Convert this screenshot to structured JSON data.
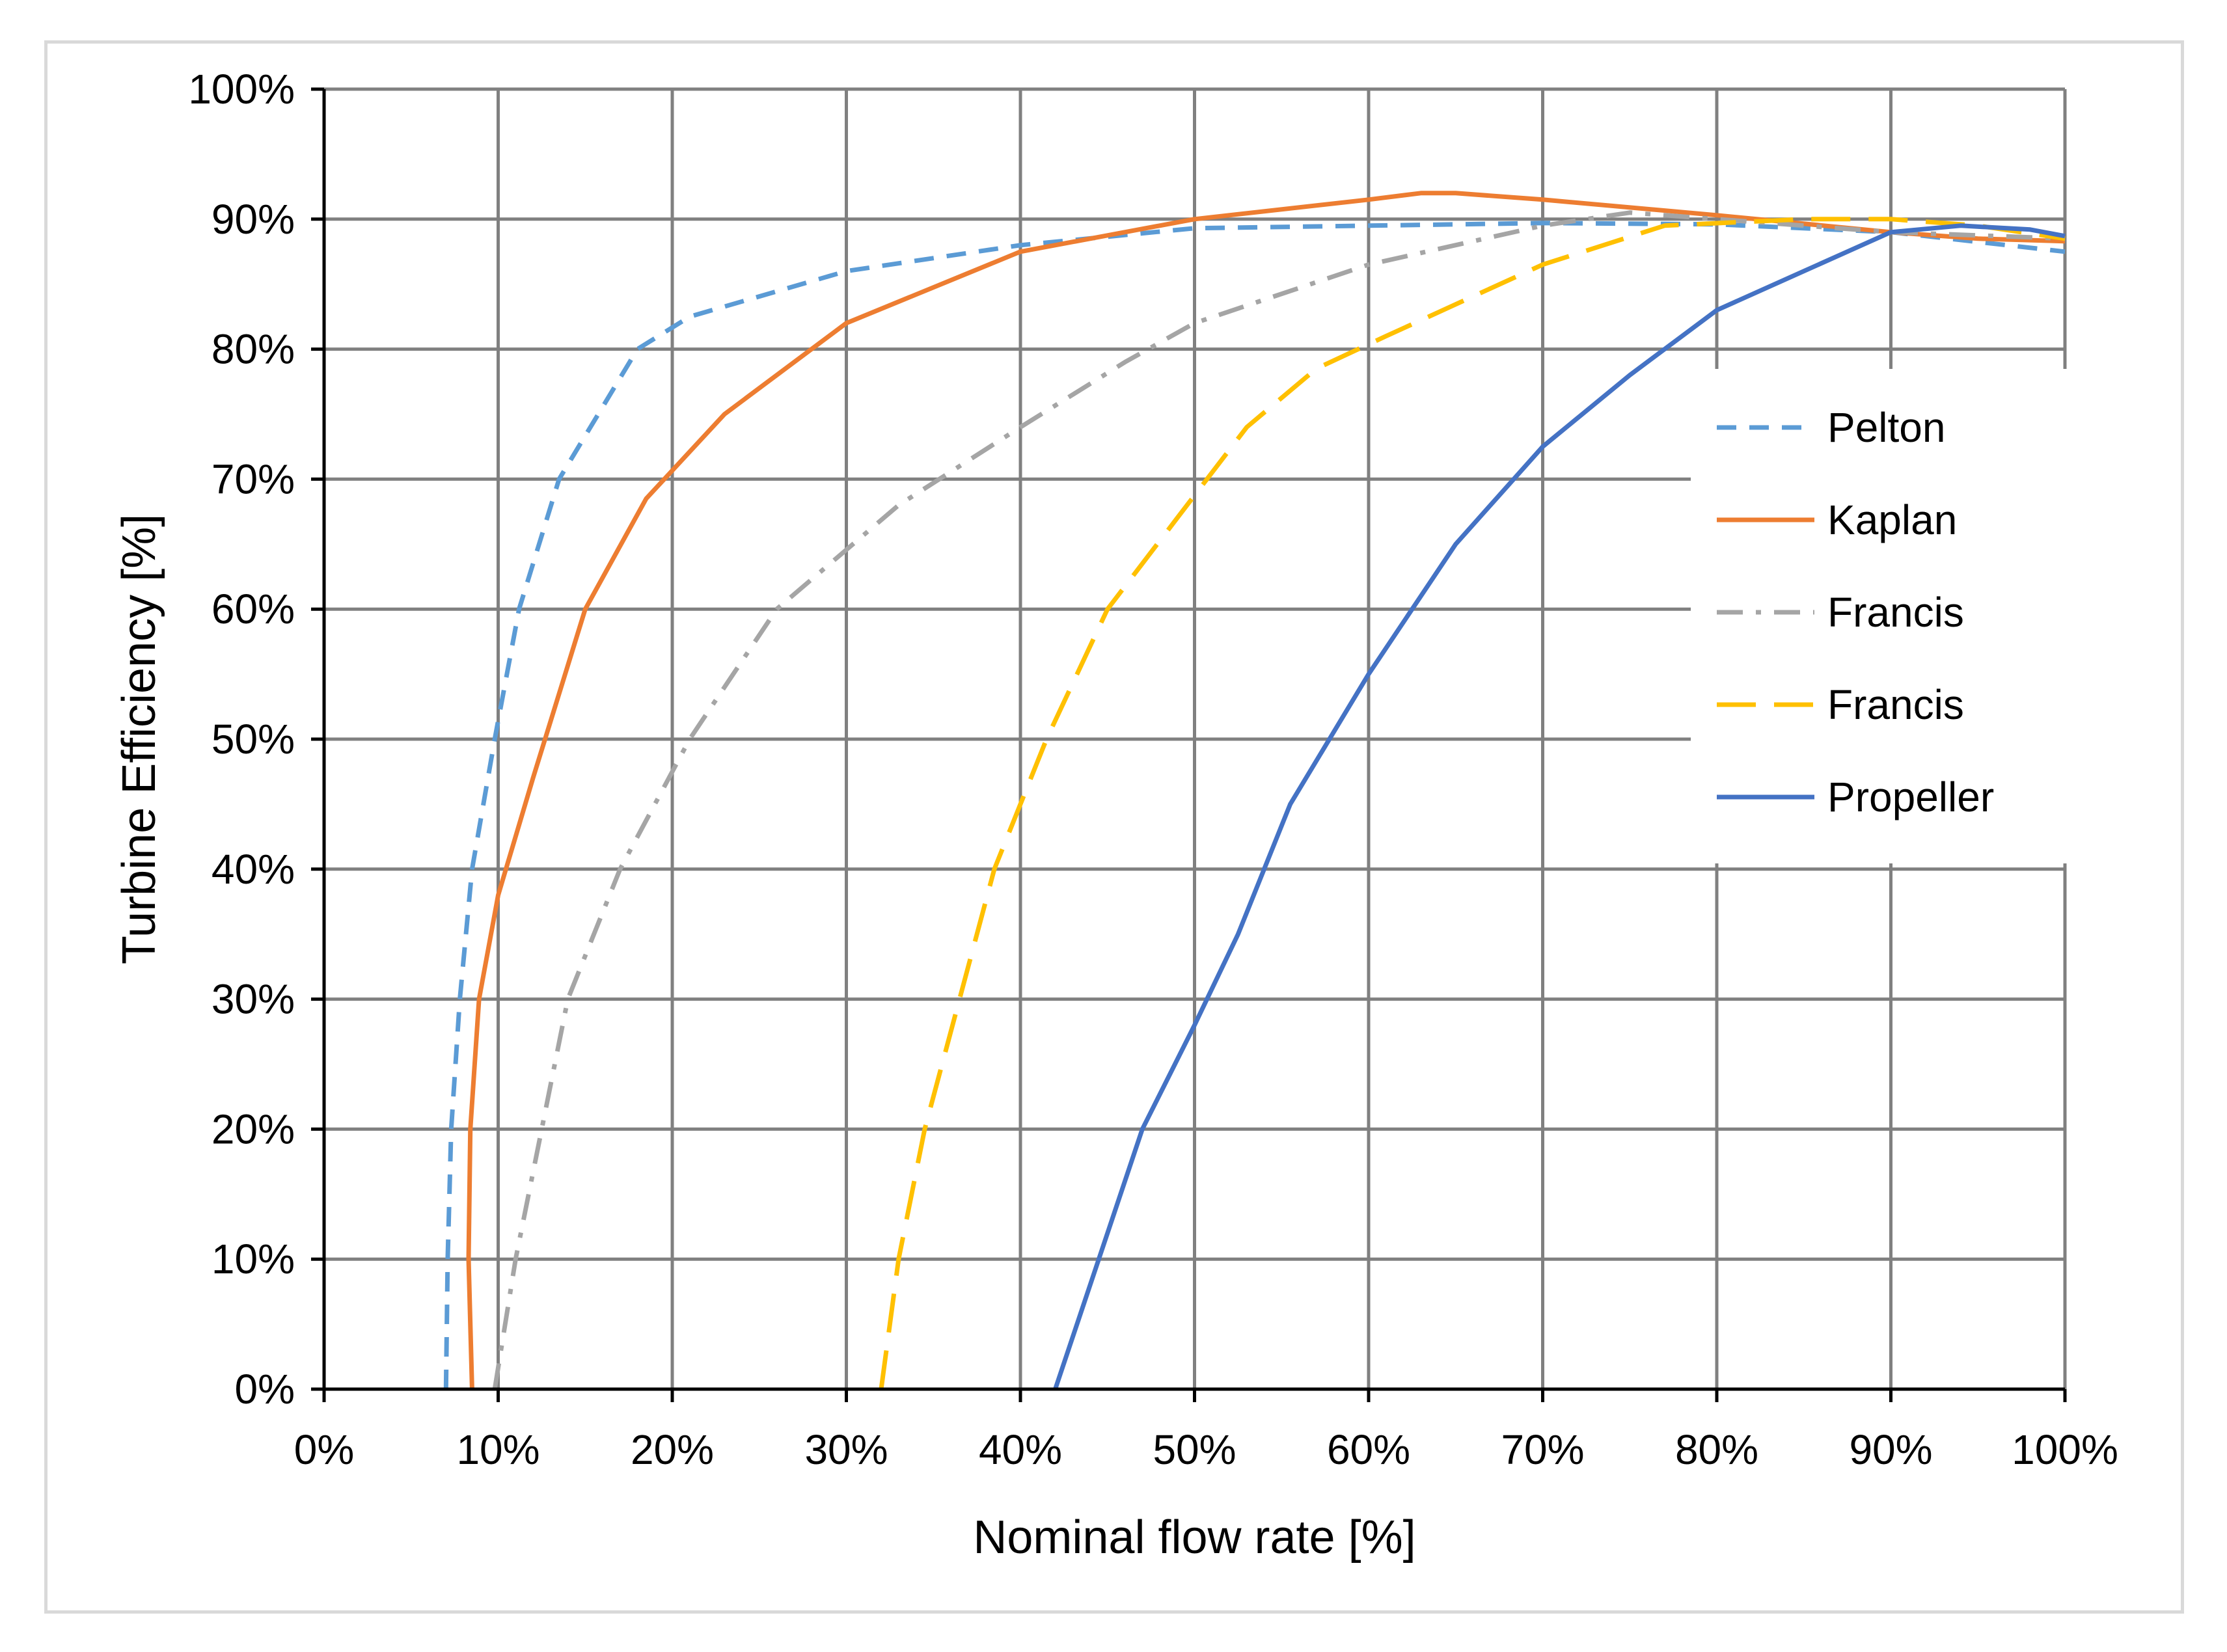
{
  "chart_data": {
    "type": "line",
    "title": "",
    "xlabel": "Nominal flow rate [%]",
    "ylabel": "Turbine Efficiency [%]",
    "xlim": [
      0,
      100
    ],
    "ylim": [
      0,
      100
    ],
    "x_ticks": [
      "0%",
      "10%",
      "20%",
      "30%",
      "40%",
      "50%",
      "60%",
      "70%",
      "80%",
      "90%",
      "100%"
    ],
    "y_ticks": [
      "0%",
      "10%",
      "20%",
      "30%",
      "40%",
      "50%",
      "60%",
      "70%",
      "80%",
      "90%",
      "100%"
    ],
    "grid": true,
    "legend_position": "right",
    "series": [
      {
        "name": "Pelton",
        "color": "#5b9bd5",
        "dash": "dash",
        "points": [
          [
            7,
            0
          ],
          [
            7.1,
            10
          ],
          [
            7.3,
            20
          ],
          [
            7.8,
            30
          ],
          [
            8.5,
            40
          ],
          [
            9.8,
            50
          ],
          [
            11.2,
            60
          ],
          [
            13.5,
            70
          ],
          [
            18,
            80
          ],
          [
            21,
            82.5
          ],
          [
            30,
            86
          ],
          [
            40,
            88
          ],
          [
            50,
            89.3
          ],
          [
            60,
            89.5
          ],
          [
            70,
            89.7
          ],
          [
            80,
            89.6
          ],
          [
            90,
            89
          ],
          [
            100,
            87.5
          ]
        ]
      },
      {
        "name": "Kaplan",
        "color": "#ed7d31",
        "dash": "solid",
        "points": [
          [
            8.5,
            0
          ],
          [
            8.3,
            10
          ],
          [
            8.4,
            20
          ],
          [
            8.9,
            30
          ],
          [
            10,
            38
          ],
          [
            12,
            47
          ],
          [
            15,
            60
          ],
          [
            18.5,
            68.5
          ],
          [
            23,
            75
          ],
          [
            30,
            82
          ],
          [
            40,
            87.5
          ],
          [
            50,
            90
          ],
          [
            60,
            91.5
          ],
          [
            63,
            92
          ],
          [
            65,
            92
          ],
          [
            70,
            91.5
          ],
          [
            80,
            90.3
          ],
          [
            90,
            89
          ],
          [
            95,
            88.5
          ],
          [
            100,
            88.3
          ]
        ]
      },
      {
        "name": "Francis",
        "color": "#a5a5a5",
        "dash": "dashdot",
        "points": [
          [
            9.8,
            0
          ],
          [
            11,
            10
          ],
          [
            12.5,
            20
          ],
          [
            14,
            30
          ],
          [
            17,
            40
          ],
          [
            21,
            50
          ],
          [
            26,
            60
          ],
          [
            33,
            68
          ],
          [
            40,
            74
          ],
          [
            46,
            79
          ],
          [
            50,
            82
          ],
          [
            60,
            86.5
          ],
          [
            70,
            89.5
          ],
          [
            75,
            90.5
          ],
          [
            80,
            90
          ],
          [
            90,
            89
          ],
          [
            100,
            88.5
          ]
        ]
      },
      {
        "name": "Francis",
        "color": "#ffc000",
        "dash": "longdash",
        "points": [
          [
            32,
            0
          ],
          [
            33,
            10
          ],
          [
            34.5,
            20
          ],
          [
            36.5,
            30
          ],
          [
            38.5,
            40
          ],
          [
            41.5,
            50
          ],
          [
            45,
            60
          ],
          [
            49,
            67
          ],
          [
            53,
            74
          ],
          [
            57,
            78.5
          ],
          [
            61,
            81
          ],
          [
            70,
            86.5
          ],
          [
            77,
            89.5
          ],
          [
            85,
            90
          ],
          [
            90,
            90
          ],
          [
            95,
            89.5
          ],
          [
            100,
            88.5
          ]
        ]
      },
      {
        "name": "Propeller",
        "color": "#4472c4",
        "dash": "solid",
        "points": [
          [
            42,
            0
          ],
          [
            44.5,
            10
          ],
          [
            47,
            20
          ],
          [
            50,
            28
          ],
          [
            52.5,
            35
          ],
          [
            55.5,
            45
          ],
          [
            60,
            55
          ],
          [
            65,
            65
          ],
          [
            70,
            72.5
          ],
          [
            75,
            78
          ],
          [
            80,
            83
          ],
          [
            85,
            86
          ],
          [
            90,
            89
          ],
          [
            94,
            89.5
          ],
          [
            98,
            89.2
          ],
          [
            100,
            88.7
          ]
        ]
      }
    ]
  }
}
